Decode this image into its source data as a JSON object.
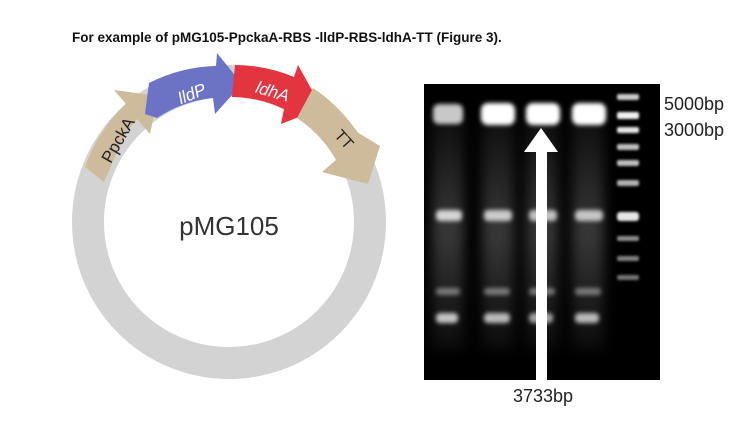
{
  "caption": "For example of pMG105-PpckaA-RBS -lldP-RBS-ldhA-TT (Figure 3).",
  "plasmid": {
    "name": "pMG105",
    "features": [
      {
        "key": "promoter",
        "label": "PpckA",
        "color": "#cdbb9c"
      },
      {
        "key": "lldp",
        "label": "lldP",
        "color": "#6d73c4"
      },
      {
        "key": "ldha",
        "label": "ldhA",
        "color": "#e3353f"
      },
      {
        "key": "tt",
        "label": "TT",
        "color": "#cdbb9c"
      }
    ],
    "backbone_color": "#d3d3d3"
  },
  "gel": {
    "ladder_labels": [
      "5000bp",
      "3000bp"
    ],
    "band_label": "3733bp"
  }
}
